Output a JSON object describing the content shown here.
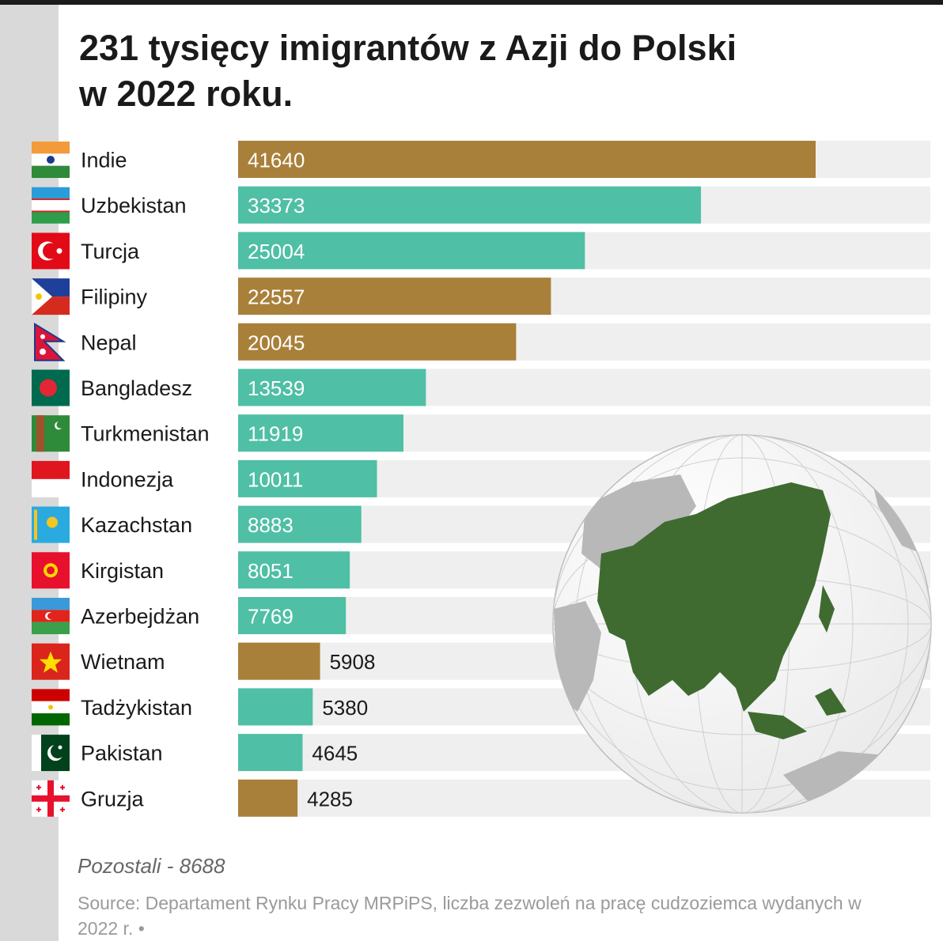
{
  "title": "231 tysięcy imigrantów z Azji do Polski\nw 2022 roku.",
  "note": "Pozostali - 8688",
  "source": "Source: Departament Rynku Pracy MRPiPS, liczba zezwoleń na pracę cudzoziemca wydanych w 2022 r. •",
  "colors": {
    "gold": "#a9803a",
    "teal": "#4fbfa5",
    "track": "#efefef",
    "globe_land": "#3f6b31",
    "globe_other": "#b8b8b8",
    "globe_ocean": "#ffffff"
  },
  "chart_data": {
    "type": "bar",
    "orientation": "horizontal",
    "categories": [
      "Indie",
      "Uzbekistan",
      "Turcja",
      "Filipiny",
      "Nepal",
      "Bangladesz",
      "Turkmenistan",
      "Indonezja",
      "Kazachstan",
      "Kirgistan",
      "Azerbejdżan",
      "Wietnam",
      "Tadżykistan",
      "Pakistan",
      "Gruzja"
    ],
    "values": [
      41640,
      33373,
      25004,
      22557,
      20045,
      13539,
      11919,
      10011,
      8883,
      8051,
      7769,
      5908,
      5380,
      4645,
      4285
    ],
    "bar_colors": [
      "gold",
      "teal",
      "teal",
      "gold",
      "gold",
      "teal",
      "teal",
      "teal",
      "teal",
      "teal",
      "teal",
      "gold",
      "teal",
      "teal",
      "gold"
    ],
    "flags": [
      "india-flag-icon",
      "uzbekistan-flag-icon",
      "turkey-flag-icon",
      "philippines-flag-icon",
      "nepal-flag-icon",
      "bangladesh-flag-icon",
      "turkmenistan-flag-icon",
      "indonesia-flag-icon",
      "kazakhstan-flag-icon",
      "kyrgyzstan-flag-icon",
      "azerbaijan-flag-icon",
      "vietnam-flag-icon",
      "tajikistan-flag-icon",
      "pakistan-flag-icon",
      "georgia-flag-icon"
    ],
    "xlim": [
      0,
      50000
    ],
    "grid": false,
    "legend": "none",
    "title": "231 tysięcy imigrantów z Azji do Polski w 2022 roku.",
    "xlabel": "",
    "ylabel": ""
  }
}
